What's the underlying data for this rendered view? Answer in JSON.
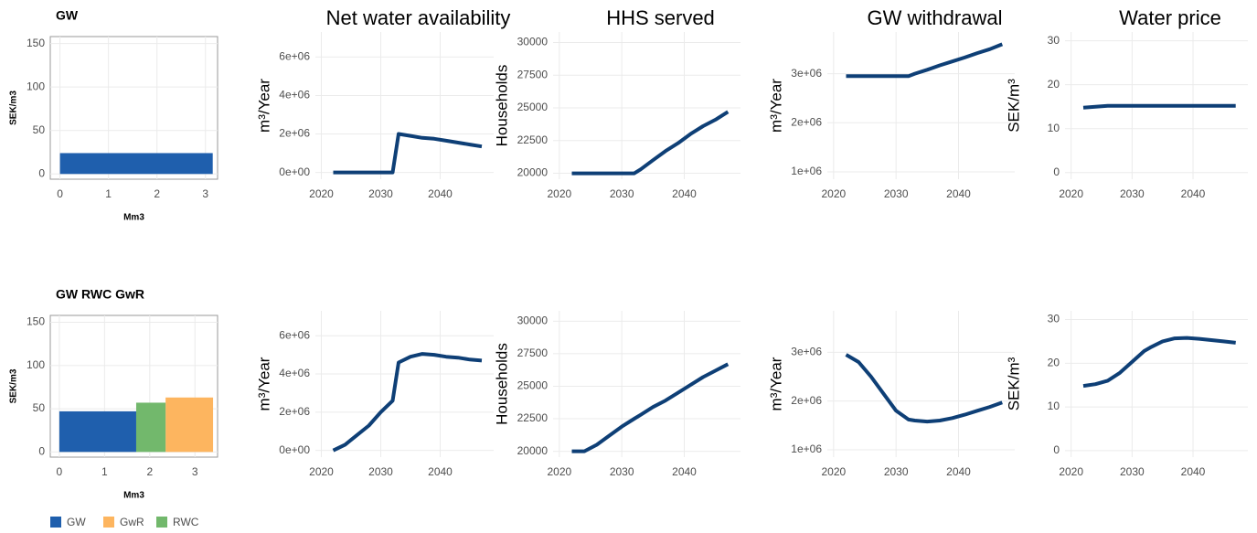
{
  "chart_data": [
    {
      "type": "step_bar",
      "title": "GW",
      "y_label": "SEK/m3",
      "x_label": "Mm3",
      "segments": [
        {
          "name": "GW",
          "color": "#1f5fad",
          "x0": 0,
          "x1": 3.15,
          "value": 24
        }
      ],
      "xlim": [
        -0.2,
        3.25
      ],
      "xticks": [
        0,
        1,
        2,
        3
      ],
      "ylim": [
        -6,
        158
      ],
      "yticks": [
        0,
        50,
        100,
        150
      ],
      "grid": true
    },
    {
      "type": "line",
      "title": "Net water availability",
      "y_label": "m³/Year",
      "x": [
        2022,
        2024,
        2026,
        2028,
        2030,
        2032,
        2033,
        2035,
        2037,
        2039,
        2041,
        2043,
        2045,
        2047
      ],
      "series": [
        {
          "color": "#0e3f76",
          "values": [
            0,
            0,
            0,
            0,
            0,
            0,
            2000000,
            1900000,
            1800000,
            1750000,
            1650000,
            1550000,
            1450000,
            1350000
          ]
        }
      ],
      "xlim": [
        2019,
        2049
      ],
      "xticks": [
        2020,
        2030,
        2040
      ],
      "ylim": [
        -350000,
        7300000
      ],
      "yticks": [
        {
          "value": 0,
          "label": "0e+00"
        },
        {
          "value": 2000000,
          "label": "2e+06"
        },
        {
          "value": 4000000,
          "label": "4e+06"
        },
        {
          "value": 6000000,
          "label": "6e+06"
        }
      ],
      "grid": true
    },
    {
      "type": "line",
      "title": "HHS served",
      "y_label": "Households",
      "x": [
        2022,
        2024,
        2026,
        2028,
        2030,
        2032,
        2033,
        2035,
        2037,
        2039,
        2041,
        2043,
        2045,
        2047
      ],
      "series": [
        {
          "color": "#0e3f76",
          "values": [
            20000,
            20000,
            20000,
            20000,
            20000,
            20000,
            20300,
            21000,
            21700,
            22300,
            23000,
            23600,
            24100,
            24700
          ]
        }
      ],
      "xlim": [
        2019,
        2049
      ],
      "xticks": [
        2020,
        2030,
        2040
      ],
      "ylim": [
        19550,
        30800
      ],
      "yticks": [
        20000,
        22500,
        25000,
        27500,
        30000
      ],
      "grid": true
    },
    {
      "type": "line",
      "title": "GW withdrawal",
      "y_label": "m³/Year",
      "x": [
        2022,
        2024,
        2026,
        2028,
        2030,
        2032,
        2033,
        2035,
        2037,
        2039,
        2041,
        2043,
        2045,
        2047
      ],
      "series": [
        {
          "color": "#0e3f76",
          "values": [
            2950000,
            2950000,
            2950000,
            2950000,
            2950000,
            2950000,
            3000000,
            3080000,
            3170000,
            3250000,
            3330000,
            3420000,
            3500000,
            3600000
          ]
        }
      ],
      "xlim": [
        2019,
        2049
      ],
      "xticks": [
        2020,
        2030,
        2040
      ],
      "ylim": [
        850000,
        3850000
      ],
      "yticks": [
        {
          "value": 1000000,
          "label": "1e+06"
        },
        {
          "value": 2000000,
          "label": "2e+06"
        },
        {
          "value": 3000000,
          "label": "3e+06"
        }
      ],
      "grid": true
    },
    {
      "type": "line",
      "title": "Water price",
      "y_label": "SEK/m³",
      "x": [
        2022,
        2024,
        2026,
        2028,
        2030,
        2032,
        2033,
        2035,
        2037,
        2039,
        2041,
        2043,
        2045,
        2047
      ],
      "series": [
        {
          "color": "#0e3f76",
          "values": [
            14.8,
            15,
            15.2,
            15.2,
            15.2,
            15.2,
            15.2,
            15.2,
            15.2,
            15.2,
            15.2,
            15.2,
            15.2,
            15.2
          ]
        }
      ],
      "xlim": [
        2019,
        2049
      ],
      "xticks": [
        2020,
        2030,
        2040
      ],
      "ylim": [
        -1.5,
        32
      ],
      "yticks": [
        0,
        10,
        20,
        30
      ],
      "grid": true
    },
    {
      "type": "step_bar",
      "title": "GW RWC GwR",
      "y_label": "SEK/m3",
      "x_label": "Mm3",
      "legend": true,
      "segments": [
        {
          "name": "GW",
          "color": "#1f5fad",
          "x0": 0,
          "x1": 1.7,
          "value": 47
        },
        {
          "name": "GwR",
          "color": "#fdb55f",
          "x0": 2.35,
          "x1": 3.4,
          "value": 63
        },
        {
          "name": "RWC",
          "color": "#72b86c",
          "x0": 1.7,
          "x1": 2.35,
          "value": 57
        }
      ],
      "xlim": [
        -0.2,
        3.5
      ],
      "xticks": [
        0,
        1,
        2,
        3
      ],
      "ylim": [
        -6,
        158
      ],
      "yticks": [
        0,
        50,
        100,
        150
      ],
      "grid": true
    },
    {
      "type": "line",
      "y_label": "m³/Year",
      "x": [
        2022,
        2024,
        2026,
        2028,
        2030,
        2032,
        2033,
        2035,
        2037,
        2039,
        2041,
        2043,
        2045,
        2047
      ],
      "series": [
        {
          "color": "#0e3f76",
          "values": [
            0,
            300000,
            800000,
            1300000,
            2000000,
            2600000,
            4600000,
            4900000,
            5050000,
            5000000,
            4900000,
            4850000,
            4750000,
            4700000
          ]
        }
      ],
      "xlim": [
        2019,
        2049
      ],
      "xticks": [
        2020,
        2030,
        2040
      ],
      "ylim": [
        -350000,
        7300000
      ],
      "yticks": [
        {
          "value": 0,
          "label": "0e+00"
        },
        {
          "value": 2000000,
          "label": "2e+06"
        },
        {
          "value": 4000000,
          "label": "4e+06"
        },
        {
          "value": 6000000,
          "label": "6e+06"
        }
      ],
      "grid": true
    },
    {
      "type": "line",
      "y_label": "Households",
      "x": [
        2022,
        2024,
        2026,
        2028,
        2030,
        2032,
        2033,
        2035,
        2037,
        2039,
        2041,
        2043,
        2045,
        2047
      ],
      "series": [
        {
          "color": "#0e3f76",
          "values": [
            20000,
            20000,
            20500,
            21200,
            21900,
            22500,
            22800,
            23400,
            23900,
            24500,
            25100,
            25700,
            26200,
            26700
          ]
        }
      ],
      "xlim": [
        2019,
        2049
      ],
      "xticks": [
        2020,
        2030,
        2040
      ],
      "ylim": [
        19550,
        30800
      ],
      "yticks": [
        20000,
        22500,
        25000,
        27500,
        30000
      ],
      "grid": true
    },
    {
      "type": "line",
      "y_label": "m³/Year",
      "x": [
        2022,
        2024,
        2026,
        2028,
        2030,
        2032,
        2033,
        2035,
        2037,
        2039,
        2041,
        2043,
        2045,
        2047
      ],
      "series": [
        {
          "color": "#0e3f76",
          "values": [
            2950000,
            2800000,
            2500000,
            2150000,
            1800000,
            1620000,
            1600000,
            1580000,
            1600000,
            1650000,
            1720000,
            1800000,
            1880000,
            1970000
          ]
        }
      ],
      "xlim": [
        2019,
        2049
      ],
      "xticks": [
        2020,
        2030,
        2040
      ],
      "ylim": [
        850000,
        3850000
      ],
      "yticks": [
        {
          "value": 1000000,
          "label": "1e+06"
        },
        {
          "value": 2000000,
          "label": "2e+06"
        },
        {
          "value": 3000000,
          "label": "3e+06"
        }
      ],
      "grid": true
    },
    {
      "type": "line",
      "y_label": "SEK/m³",
      "x": [
        2022,
        2024,
        2026,
        2028,
        2030,
        2032,
        2033,
        2035,
        2037,
        2039,
        2041,
        2043,
        2045,
        2047
      ],
      "series": [
        {
          "color": "#0e3f76",
          "values": [
            14.8,
            15.2,
            16,
            17.8,
            20.3,
            22.8,
            23.6,
            25,
            25.7,
            25.8,
            25.6,
            25.3,
            25,
            24.7
          ]
        }
      ],
      "xlim": [
        2019,
        2049
      ],
      "xticks": [
        2020,
        2030,
        2040
      ],
      "ylim": [
        -1.5,
        32
      ],
      "yticks": [
        0,
        10,
        20,
        30
      ],
      "grid": true
    }
  ]
}
